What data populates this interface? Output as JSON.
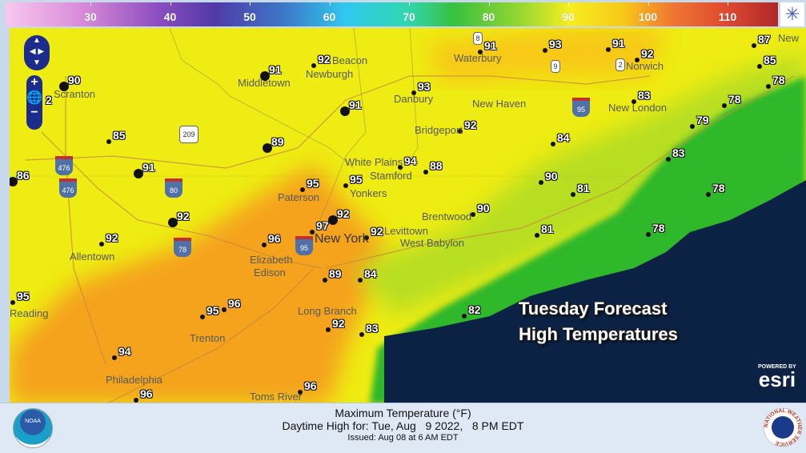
{
  "color_scale": {
    "ticks": [
      "30",
      "40",
      "50",
      "60",
      "70",
      "80",
      "90",
      "100",
      "110"
    ],
    "colors": {
      "cold": "#f8c8f0",
      "mid": "#30c8ee",
      "warm": "#f6ee20",
      "hot": "#b02828"
    }
  },
  "map": {
    "colors": {
      "base": "#eeec12",
      "hot": "#f5a21c",
      "cool": "#b8de22",
      "green": "#2eb82c",
      "ocean": "#0c2244"
    },
    "stations": [
      "90",
      "91",
      "92",
      "91",
      "89",
      "85",
      "86",
      "91",
      "92",
      "92",
      "95",
      "95",
      "92",
      "97",
      "96",
      "92",
      "89",
      "84",
      "95",
      "96",
      "95",
      "94",
      "92",
      "83",
      "96",
      "96",
      "91",
      "93",
      "91",
      "92",
      "93",
      "92",
      "94",
      "88",
      "84",
      "90",
      "81",
      "90",
      "81",
      "78",
      "83",
      "79",
      "83",
      "78",
      "78",
      "87",
      "85",
      "78",
      "82",
      "2"
    ],
    "cities": [
      "Scranton",
      "Middletown",
      "Beacon",
      "Newburgh",
      "White Plains",
      "Stamford",
      "Paterson",
      "Yonkers",
      "New York",
      "Elizabeth",
      "Levittown",
      "West Babylon",
      "Brentwood",
      "Edison",
      "Long Branch",
      "Trenton",
      "Philadelphia",
      "Toms River",
      "Allentown",
      "Waterbury",
      "Norwich",
      "New London",
      "New Haven",
      "Danbury",
      "Bridgeport",
      "Reading",
      "New"
    ],
    "highways": [
      "476",
      "476",
      "80",
      "78",
      "95",
      "95",
      "8",
      "9",
      "2",
      "209"
    ],
    "overlay": {
      "line1": "Tuesday Forecast",
      "line2": "High Temperatures"
    },
    "esri": {
      "powered": "POWERED BY",
      "name": "esri"
    }
  },
  "footer": {
    "title": "Maximum Temperature (°F)",
    "subtitle": "Daytime High for: Tue, Aug   9 2022,   8 PM EDT",
    "issued": "Issued: Aug 08 at 6 AM EDT",
    "left_logo": "NOAA",
    "right_logo": "NATIONAL WEATHER SERVICE"
  }
}
